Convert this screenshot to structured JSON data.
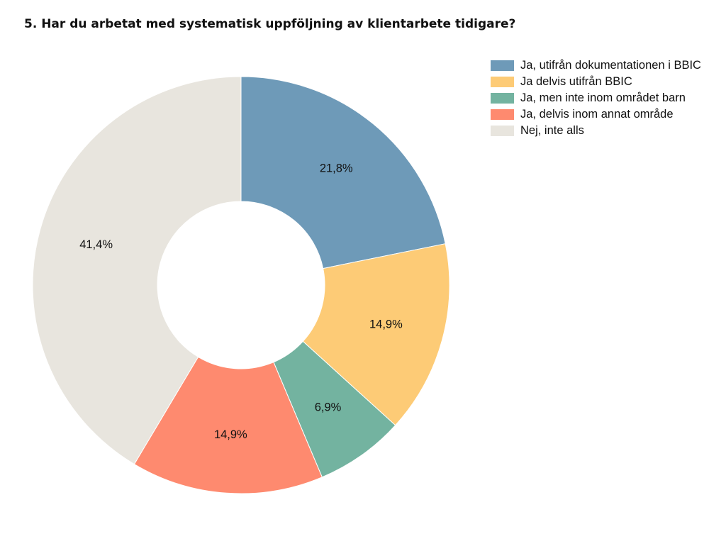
{
  "title": "5. Har du arbetat med systematisk uppföljning av klientarbete tidigare?",
  "chart_data": {
    "type": "pie",
    "donut": true,
    "title": "5. Har du arbetat med systematisk uppföljning av klientarbete tidigare?",
    "categories": [
      "Ja, utifrån dokumentationen i BBIC",
      "Ja delvis utifrån BBIC",
      "Ja, men inte inom området barn",
      "Ja, delvis inom annat område",
      "Nej, inte alls"
    ],
    "values": [
      21.8,
      14.9,
      6.9,
      14.9,
      41.4
    ],
    "labels": [
      "21,8%",
      "14,9%",
      "6,9%",
      "14,9%",
      "41,4%"
    ],
    "colors": [
      "#6e9ab8",
      "#fdcb76",
      "#73b3a0",
      "#fe8a6f",
      "#e8e5de"
    ],
    "legend_position": "right"
  }
}
